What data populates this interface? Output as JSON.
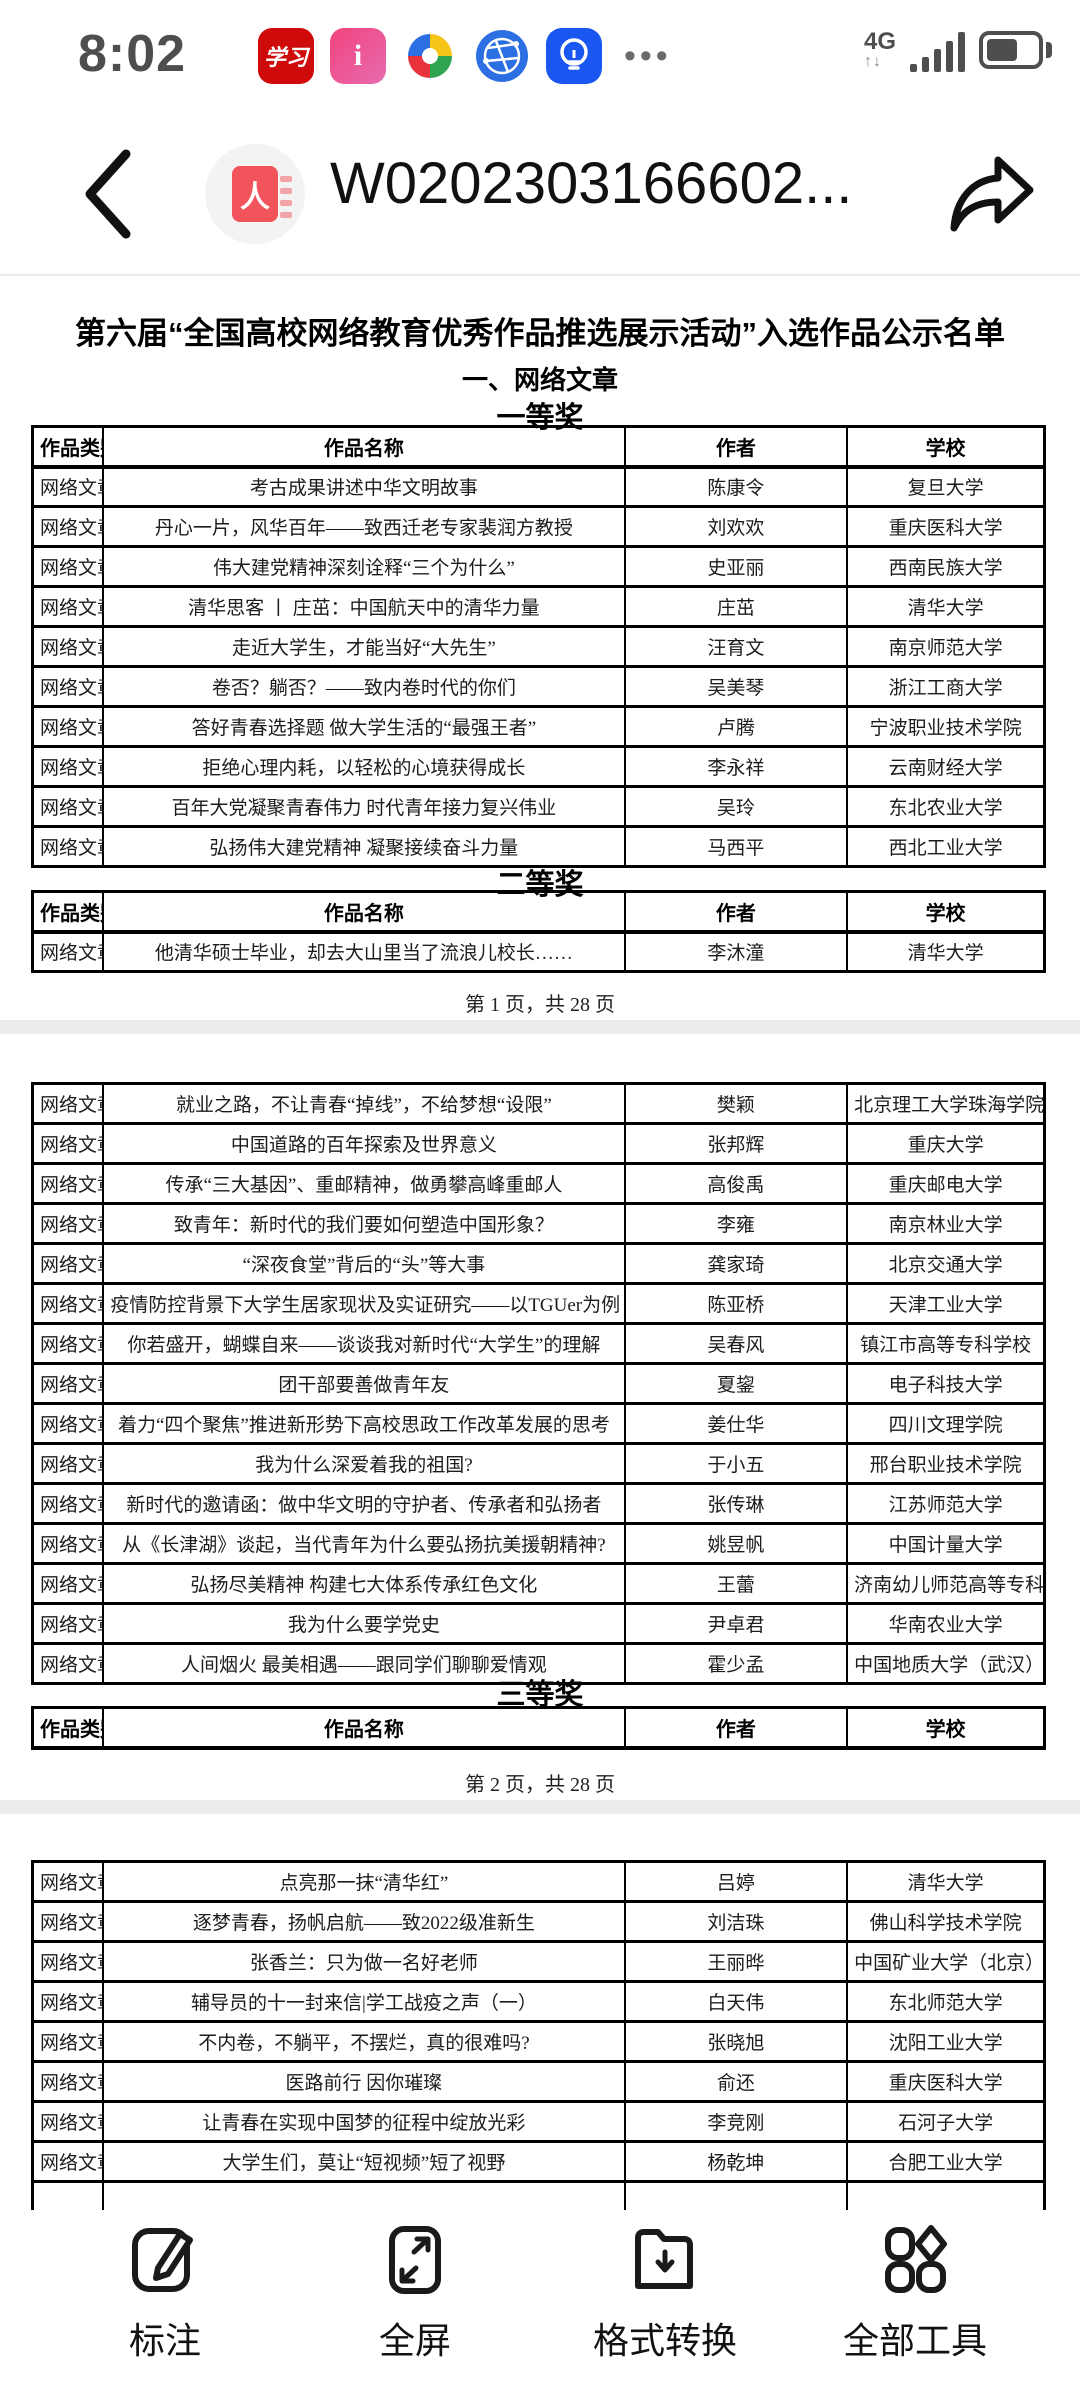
{
  "status_bar": {
    "time": "8:02",
    "network_label": "4G",
    "data_arrows": "↑↓",
    "more_dots": "•••",
    "app_icons": [
      {
        "name": "xuexi-app-icon",
        "glyph": "学习"
      },
      {
        "name": "info-app-icon",
        "glyph": "i"
      },
      {
        "name": "pinwheel-app-icon",
        "glyph": ""
      },
      {
        "name": "browser-globe-app-icon",
        "glyph": ""
      },
      {
        "name": "lightbulb-app-icon",
        "glyph": ""
      }
    ]
  },
  "nav": {
    "title": "W0202303166602..."
  },
  "doc": {
    "title": "第六届“全国高校网络教育优秀作品推选展示活动”入选作品公示名单",
    "section": "一、网络文章",
    "prize1": "一等奖",
    "prize2": "二等奖",
    "prize3": "三等奖",
    "columns": [
      "作品类别",
      "作品名称",
      "作者",
      "学校"
    ],
    "page1_footer": "第 1 页，共 28 页",
    "page2_footer": "第 2 页，共 28 页",
    "table1": [
      [
        "网络文章",
        "考古成果讲述中华文明故事",
        "陈康令",
        "复旦大学"
      ],
      [
        "网络文章",
        "丹心一片，风华百年——致西迁老专家裴润方教授",
        "刘欢欢",
        "重庆医科大学"
      ],
      [
        "网络文章",
        "伟大建党精神深刻诠释“三个为什么”",
        "史亚丽",
        "西南民族大学"
      ],
      [
        "网络文章",
        "清华思客 丨 庄茁：中国航天中的清华力量",
        "庄茁",
        "清华大学"
      ],
      [
        "网络文章",
        "走近大学生，才能当好“大先生”",
        "汪育文",
        "南京师范大学"
      ],
      [
        "网络文章",
        "卷否？躺否？——致内卷时代的你们",
        "吴美琴",
        "浙江工商大学"
      ],
      [
        "网络文章",
        "答好青春选择题 做大学生活的“最强王者”",
        "卢腾",
        "宁波职业技术学院"
      ],
      [
        "网络文章",
        "拒绝心理内耗，以轻松的心境获得成长",
        "李永祥",
        "云南财经大学"
      ],
      [
        "网络文章",
        "百年大党凝聚青春伟力 时代青年接力复兴伟业",
        "吴玲",
        "东北农业大学"
      ],
      [
        "网络文章",
        "弘扬伟大建党精神 凝聚接续奋斗力量",
        "马西平",
        "西北工业大学"
      ]
    ],
    "table2": [
      [
        "网络文章",
        "他清华硕士毕业，却去大山里当了流浪儿校长……",
        "李沐潼",
        "清华大学"
      ]
    ],
    "table3": [
      [
        "网络文章",
        "就业之路，不让青春“掉线”，不给梦想“设限”",
        "樊颖",
        "北京理工大学珠海学院"
      ],
      [
        "网络文章",
        "中国道路的百年探索及世界意义",
        "张邦辉",
        "重庆大学"
      ],
      [
        "网络文章",
        "传承“三大基因”、重邮精神，做勇攀高峰重邮人",
        "高俊禹",
        "重庆邮电大学"
      ],
      [
        "网络文章",
        "致青年：新时代的我们要如何塑造中国形象？",
        "李雍",
        "南京林业大学"
      ],
      [
        "网络文章",
        "“深夜食堂”背后的“头”等大事",
        "龚家琦",
        "北京交通大学"
      ],
      [
        "网络文章",
        "疫情防控背景下大学生居家现状及实证研究——以TGUer为例",
        "陈亚桥",
        "天津工业大学"
      ],
      [
        "网络文章",
        "你若盛开，蝴蝶自来——谈谈我对新时代“大学生”的理解",
        "吴春风",
        "镇江市高等专科学校"
      ],
      [
        "网络文章",
        "团干部要善做青年友",
        "夏鋆",
        "电子科技大学"
      ],
      [
        "网络文章",
        "着力“四个聚焦”推进新形势下高校思政工作改革发展的思考",
        "姜仕华",
        "四川文理学院"
      ],
      [
        "网络文章",
        "我为什么深爱着我的祖国?",
        "于小五",
        "邢台职业技术学院"
      ],
      [
        "网络文章",
        "新时代的邀请函：做中华文明的守护者、传承者和弘扬者",
        "张传琳",
        "江苏师范大学"
      ],
      [
        "网络文章",
        "从《长津湖》谈起，当代青年为什么要弘扬抗美援朝精神?",
        "姚昱帆",
        "中国计量大学"
      ],
      [
        "网络文章",
        "弘扬尽美精神 构建七大体系传承红色文化",
        "王蕾",
        "济南幼儿师范高等专科学校"
      ],
      [
        "网络文章",
        "我为什么要学党史",
        "尹卓君",
        "华南农业大学"
      ],
      [
        "网络文章",
        "人间烟火 最美相遇——跟同学们聊聊爱情观",
        "霍少孟",
        "中国地质大学（武汉）"
      ]
    ],
    "table4": [
      [
        "网络文章",
        "点亮那一抹“清华红”",
        "吕婷",
        "清华大学"
      ],
      [
        "网络文章",
        "逐梦青春，扬帆启航——致2022级准新生",
        "刘洁珠",
        "佛山科学技术学院"
      ],
      [
        "网络文章",
        "张香兰：只为做一名好老师",
        "王丽晔",
        "中国矿业大学（北京）"
      ],
      [
        "网络文章",
        "辅导员的十一封来信|学工战疫之声（一）",
        "白天伟",
        "东北师范大学"
      ],
      [
        "网络文章",
        "不内卷，不躺平，不摆烂，真的很难吗?",
        "张晓旭",
        "沈阳工业大学"
      ],
      [
        "网络文章",
        "医路前行  因你璀璨",
        "俞还",
        "重庆医科大学"
      ],
      [
        "网络文章",
        "让青春在实现中国梦的征程中绽放光彩",
        "李竞刚",
        "石河子大学"
      ],
      [
        "网络文章",
        "大学生们，莫让“短视频”短了视野",
        "杨乾坤",
        "合肥工业大学"
      ],
      [
        "",
        "",
        "",
        ""
      ]
    ]
  },
  "toolbar": {
    "items": [
      {
        "label": "标注"
      },
      {
        "label": "全屏"
      },
      {
        "label": "格式转换"
      },
      {
        "label": "全部工具"
      }
    ]
  }
}
